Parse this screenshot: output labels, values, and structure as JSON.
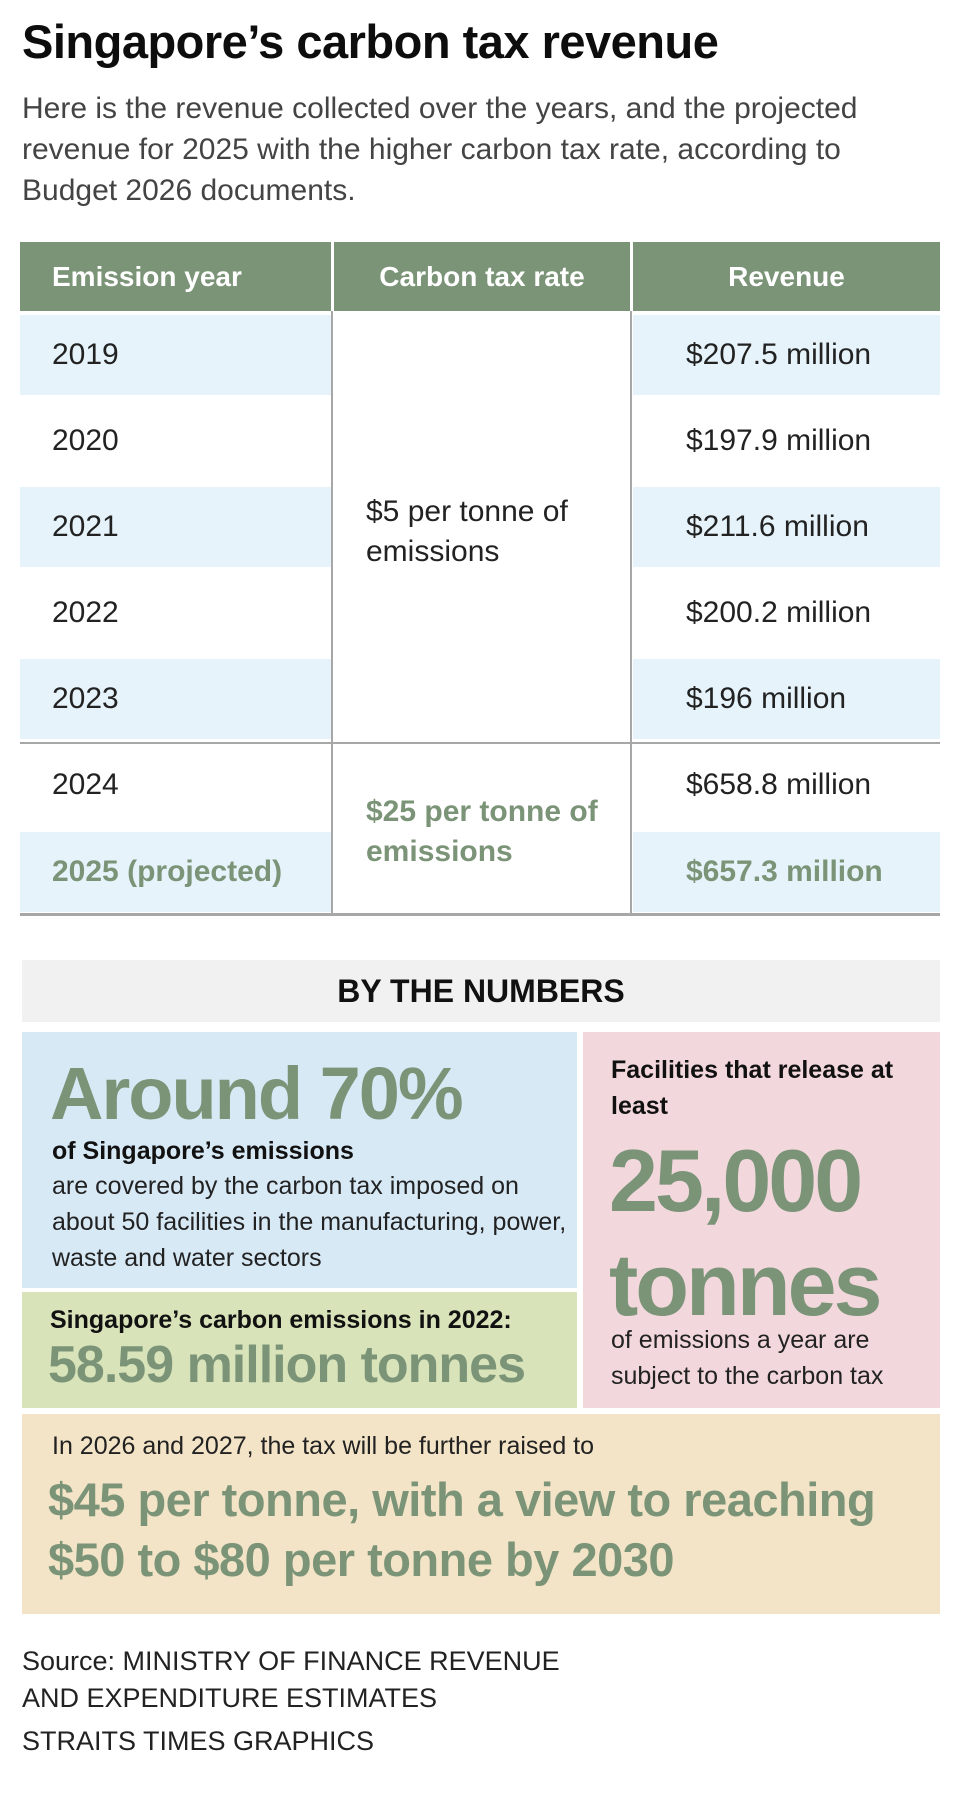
{
  "title": "Singapore’s carbon tax revenue",
  "intro": "Here is the revenue collected over the years, and the projected revenue for 2025 with the higher carbon tax rate, according to Budget 2026 documents.",
  "table": {
    "headers": [
      "Emission year",
      "Carbon tax rate",
      "Revenue"
    ],
    "rows": [
      {
        "year": "2019",
        "revenue": "$207.5 million"
      },
      {
        "year": "2020",
        "revenue": "$197.9 million"
      },
      {
        "year": "2021",
        "revenue": "$211.6 million"
      },
      {
        "year": "2022",
        "revenue": "$200.2 million"
      },
      {
        "year": "2023",
        "revenue": "$196 million"
      },
      {
        "year": "2024",
        "revenue": "$658.8 million"
      },
      {
        "year": "2025 (projected)",
        "revenue": "$657.3 million"
      }
    ],
    "rate_low": "$5 per tonne of emissions",
    "rate_high": "$25 per tonne of emissions"
  },
  "by_the_numbers": {
    "heading": "BY THE NUMBERS",
    "share": {
      "value": "Around 70%",
      "subtitle": "of Singapore’s emissions",
      "text": "are covered by the carbon tax imposed on about 50 facilities in the manufacturing, power, waste and water sectors"
    },
    "emissions_2022": {
      "label": "Singapore’s carbon emissions in 2022:",
      "value": "58.59 million tonnes"
    },
    "threshold": {
      "label": "Facilities that release at least",
      "number": "25,000",
      "unit": "tonnes",
      "text": "of emissions a year are subject to the carbon tax"
    },
    "future": {
      "label": "In 2026 and 2027, the tax will be further raised to",
      "value": "$45 per tonne, with a view to reaching $50 to $80 per tonne by 2030"
    }
  },
  "source": "Source: MINISTRY OF FINANCE REVENUE AND EXPENDITURE ESTIMATES",
  "credit": "STRAITS TIMES GRAPHICS",
  "colors": {
    "header_green": "#7b9478",
    "row_band_blue": "#e6f3fa",
    "box_blue": "#d8e9f6",
    "box_green": "#d8e3b9",
    "box_pink": "#f2d8dd",
    "box_tan": "#f3e4c7"
  }
}
